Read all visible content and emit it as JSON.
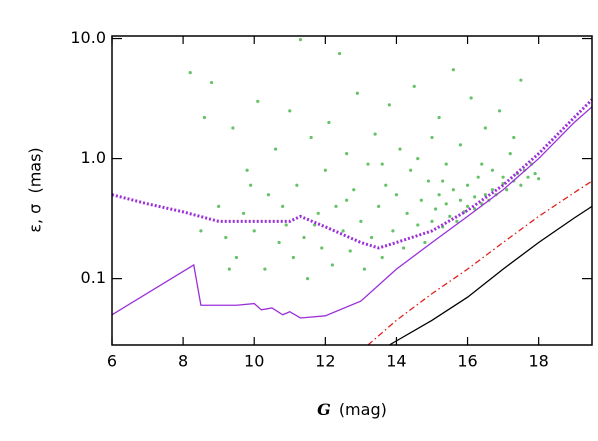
{
  "chart_data": {
    "type": "scatter",
    "xlabel": {
      "symbol": "G",
      "unit": "(mag)"
    },
    "ylabel": "ε, σ  (mas)",
    "log_y": true,
    "xlim": [
      6,
      19.5
    ],
    "ylim": [
      0.028,
      10.5
    ],
    "xticks": [
      6,
      8,
      10,
      12,
      14,
      16,
      18
    ],
    "yticks": [
      {
        "value": 0.1,
        "label": "0.1"
      },
      {
        "value": 1,
        "label": "1.0"
      },
      {
        "value": 10,
        "label": "10.0"
      }
    ],
    "points": {
      "color": "#66c266",
      "x": [
        8.2,
        8.6,
        8.8,
        9.0,
        9.2,
        9.4,
        9.5,
        9.7,
        9.8,
        10.0,
        10.1,
        10.3,
        10.4,
        10.6,
        10.7,
        10.9,
        11.0,
        11.1,
        11.2,
        11.3,
        11.4,
        11.5,
        11.6,
        11.8,
        11.9,
        12.0,
        12.1,
        12.2,
        12.3,
        12.4,
        12.5,
        12.6,
        12.7,
        12.8,
        12.9,
        13.0,
        13.1,
        13.2,
        13.3,
        13.4,
        13.5,
        13.6,
        13.7,
        13.8,
        13.9,
        14.0,
        14.1,
        14.2,
        14.3,
        14.4,
        14.5,
        14.6,
        14.7,
        14.8,
        14.9,
        15.0,
        15.0,
        15.1,
        15.2,
        15.2,
        15.3,
        15.4,
        15.4,
        15.5,
        15.6,
        15.6,
        15.7,
        15.8,
        15.8,
        15.9,
        16.0,
        16.0,
        16.1,
        16.2,
        16.2,
        16.3,
        16.4,
        16.5,
        16.5,
        16.6,
        16.7,
        16.7,
        16.8,
        16.9,
        17.0,
        17.0,
        17.1,
        17.2,
        17.3,
        17.4,
        17.5,
        17.5,
        17.6,
        17.7,
        17.8,
        17.9,
        18.0,
        17.3,
        16.4,
        15.3,
        14.6,
        13.6,
        12.6,
        11.7,
        10.8,
        9.9,
        9.3,
        8.5
      ],
      "y": [
        5.2,
        2.2,
        4.3,
        0.4,
        0.22,
        1.8,
        0.15,
        0.35,
        0.8,
        0.25,
        3.0,
        0.12,
        0.5,
        1.2,
        0.2,
        0.28,
        2.5,
        0.15,
        0.6,
        9.8,
        0.22,
        0.1,
        1.5,
        0.35,
        0.18,
        0.8,
        2.0,
        0.13,
        0.4,
        7.5,
        0.25,
        1.1,
        0.17,
        0.55,
        3.5,
        0.3,
        0.12,
        0.9,
        0.22,
        1.6,
        0.4,
        0.15,
        0.6,
        2.8,
        0.25,
        0.5,
        1.2,
        0.18,
        0.35,
        0.8,
        4.0,
        0.28,
        0.45,
        0.2,
        0.65,
        1.5,
        0.3,
        0.38,
        0.5,
        2.2,
        0.27,
        0.42,
        0.9,
        0.33,
        5.5,
        0.55,
        0.3,
        0.45,
        1.3,
        0.36,
        0.6,
        0.4,
        3.2,
        0.48,
        0.38,
        0.7,
        0.42,
        1.8,
        0.5,
        0.45,
        0.8,
        0.55,
        0.5,
        2.5,
        0.62,
        0.7,
        0.55,
        1.1,
        0.65,
        0.75,
        0.6,
        4.5,
        0.8,
        0.7,
        0.9,
        0.75,
        0.68,
        1.5,
        0.9,
        0.65,
        1.0,
        0.9,
        0.45,
        0.28,
        0.4,
        0.6,
        0.12,
        0.25
      ]
    },
    "lines": [
      {
        "color": "#9b30d9",
        "style": "solid",
        "x": [
          6,
          8.3,
          8.5,
          9,
          9.5,
          10,
          10.2,
          10.5,
          10.8,
          11,
          11.3,
          12,
          13,
          14,
          15,
          16,
          17,
          18,
          19,
          19.5
        ],
        "y": [
          0.05,
          0.13,
          0.06,
          0.06,
          0.06,
          0.062,
          0.055,
          0.057,
          0.05,
          0.053,
          0.047,
          0.049,
          0.065,
          0.12,
          0.2,
          0.33,
          0.55,
          1.0,
          2.0,
          2.7
        ]
      },
      {
        "color": "#9b30d9",
        "style": "dotted",
        "x": [
          6,
          7,
          8,
          9,
          10,
          11,
          11.3,
          12,
          13,
          13.5,
          14,
          15,
          16,
          17,
          18,
          19,
          19.5
        ],
        "y": [
          0.5,
          0.42,
          0.36,
          0.3,
          0.3,
          0.3,
          0.33,
          0.27,
          0.2,
          0.18,
          0.2,
          0.25,
          0.37,
          0.6,
          1.1,
          2.2,
          3.1
        ]
      },
      {
        "color": "#e0201c",
        "style": "dashdot",
        "x": [
          13.2,
          14,
          15,
          16,
          17,
          18,
          19,
          19.5
        ],
        "y": [
          0.028,
          0.045,
          0.075,
          0.12,
          0.2,
          0.33,
          0.52,
          0.65
        ]
      },
      {
        "color": "#000000",
        "style": "solid",
        "x": [
          13.8,
          15,
          16,
          17,
          18,
          19,
          19.5
        ],
        "y": [
          0.028,
          0.045,
          0.07,
          0.12,
          0.2,
          0.32,
          0.4
        ]
      }
    ]
  }
}
